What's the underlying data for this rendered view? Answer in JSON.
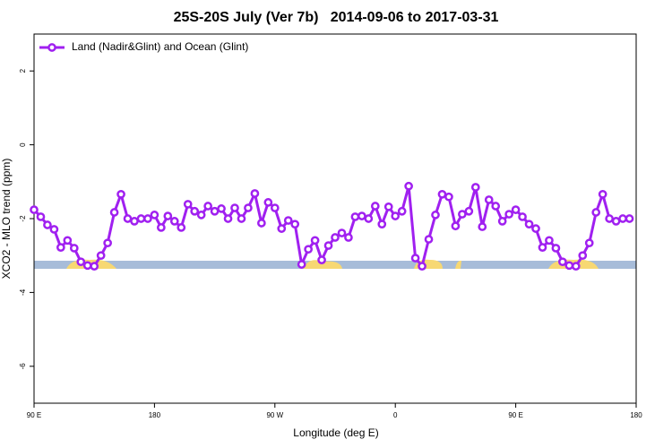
{
  "chart_data": {
    "type": "line",
    "title": "25S-20S July (Ver 7b)   2014-09-06 to 2017-03-31",
    "xlabel": "Longitude (deg E)",
    "ylabel": "XCO2 - MLO trend (ppm)",
    "legend_position": "upper-left",
    "x": [
      90,
      95,
      100,
      105,
      110,
      115,
      120,
      125,
      130,
      135,
      140,
      145,
      150,
      155,
      160,
      165,
      170,
      175,
      180,
      185,
      190,
      195,
      200,
      205,
      210,
      215,
      220,
      225,
      230,
      235,
      240,
      245,
      250,
      255,
      260,
      265,
      270,
      275,
      280,
      285,
      290,
      295,
      300,
      305,
      310,
      315,
      320,
      325,
      330,
      335,
      340,
      345,
      350,
      355,
      360,
      365,
      370,
      375,
      380,
      385,
      390,
      395,
      400,
      405,
      410,
      415,
      420,
      425,
      430,
      435,
      440,
      445,
      450,
      455,
      460,
      465,
      470,
      475,
      480,
      485,
      490,
      495,
      500,
      505,
      510,
      515,
      520,
      525,
      530,
      535
    ],
    "series": [
      {
        "name": "Land (Nadir&Glint) and Ocean (Glint)",
        "color": "#a020f0",
        "values": [
          -1.76,
          -1.95,
          -2.17,
          -2.29,
          -2.78,
          -2.59,
          -2.8,
          -3.17,
          -3.27,
          -3.29,
          -3.0,
          -2.66,
          -1.83,
          -1.34,
          -2.0,
          -2.07,
          -2.0,
          -2.0,
          -1.9,
          -2.24,
          -1.93,
          -2.07,
          -2.24,
          -1.61,
          -1.8,
          -1.9,
          -1.66,
          -1.8,
          -1.73,
          -2.0,
          -1.71,
          -2.0,
          -1.71,
          -1.32,
          -2.12,
          -1.56,
          -1.71,
          -2.27,
          -2.05,
          -2.15,
          -3.24,
          -2.83,
          -2.59,
          -3.12,
          -2.73,
          -2.51,
          -2.39,
          -2.51,
          -1.95,
          -1.93,
          -2.0,
          -1.66,
          -2.15,
          -1.68,
          -1.93,
          -1.8,
          -1.12,
          -3.07,
          -3.29,
          -2.56,
          -1.9,
          -1.34,
          -1.41,
          -2.2,
          -1.88,
          -1.8,
          -1.15,
          -2.22,
          -1.49,
          -1.66,
          -2.07,
          -1.88,
          -1.76,
          -1.95,
          -2.15,
          -2.27,
          -2.78,
          -2.59,
          -2.8,
          -3.17,
          -3.27,
          -3.29,
          -3.0,
          -2.66,
          -1.83,
          -1.34,
          -2.0,
          -2.07,
          -2.0,
          -2.0
        ]
      }
    ],
    "xlim": [
      90,
      540
    ],
    "xticks": [
      {
        "value": 90,
        "label": "90 E"
      },
      180,
      {
        "value": 270,
        "label": "90 W"
      },
      {
        "value": 360,
        "label": "0"
      },
      {
        "value": 450,
        "label": "90 E"
      },
      {
        "value": 540,
        "label": "180"
      }
    ],
    "ylim": [
      -7,
      3
    ],
    "yticks": [
      2,
      0,
      -2,
      -4,
      -6
    ]
  }
}
